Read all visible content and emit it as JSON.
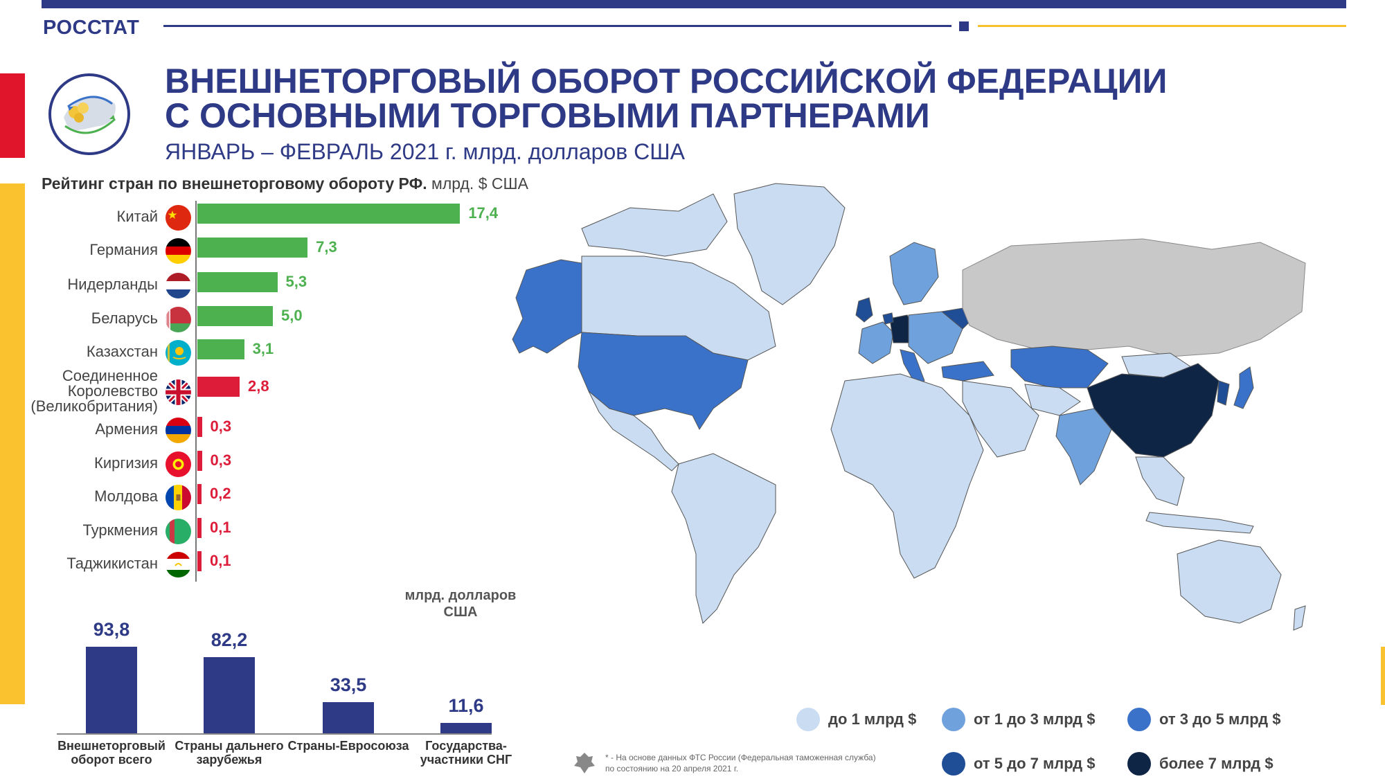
{
  "brand": "РОССТАТ",
  "title_line1": "ВНЕШНЕТОРГОВЫЙ ОБОРОТ РОССИЙСКОЙ ФЕДЕРАЦИИ",
  "title_line2": "С ОСНОВНЫМИ ТОРГОВЫМИ ПАРТНЕРАМИ",
  "subtitle": "ЯНВАРЬ – ФЕВРАЛЬ 2021 г. млрд. долларов США",
  "colors": {
    "navy": "#2e3a86",
    "green": "#4db14f",
    "red": "#dc1c38",
    "accent_red": "#e0142b",
    "accent_yellow": "#f9c22e",
    "map_grey": "#c8c8c8"
  },
  "chart_data": [
    {
      "type": "bar",
      "orientation": "horizontal",
      "title": "Рейтинг стран по внешнеторговому обороту РФ.",
      "unit": "млрд. $ США",
      "categories": [
        "Китай",
        "Германия",
        "Нидерланды",
        "Беларусь",
        "Казахстан",
        "Соединенное Королевство (Великобритания)",
        "Армения",
        "Киргизия",
        "Молдова",
        "Туркмения",
        "Таджикистан"
      ],
      "values": [
        17.4,
        7.3,
        5.3,
        5.0,
        3.1,
        2.8,
        0.3,
        0.3,
        0.2,
        0.1,
        0.1
      ],
      "value_labels": [
        "17,4",
        "7,3",
        "5,3",
        "5,0",
        "3,1",
        "2,8",
        "0,3",
        "0,3",
        "0,2",
        "0,1",
        "0,1"
      ],
      "bar_colors": [
        "#4db14f",
        "#4db14f",
        "#4db14f",
        "#4db14f",
        "#4db14f",
        "#dc1c38",
        "#dc1c38",
        "#dc1c38",
        "#dc1c38",
        "#dc1c38",
        "#dc1c38"
      ],
      "flags": [
        "china-flag-icon",
        "germany-flag-icon",
        "netherlands-flag-icon",
        "belarus-flag-icon",
        "kazakhstan-flag-icon",
        "uk-flag-icon",
        "armenia-flag-icon",
        "kyrgyzstan-flag-icon",
        "moldova-flag-icon",
        "turkmenistan-flag-icon",
        "tajikistan-flag-icon"
      ]
    },
    {
      "type": "bar",
      "orientation": "vertical",
      "unit_label": "млрд. долларов США",
      "categories": [
        "Внешнеторговый оборот всего",
        "Страны дальнего зарубежья",
        "Страны-Евросоюза",
        "Государства-участники СНГ"
      ],
      "values": [
        93.8,
        82.2,
        33.5,
        11.6
      ],
      "value_labels": [
        "93,8",
        "82,2",
        "33,5",
        "11,6"
      ]
    }
  ],
  "map": {
    "type": "choropleth world map",
    "legend": [
      {
        "label": "до 1 млрд $",
        "color": "#c9dcf1"
      },
      {
        "label": "от 1 до 3 млрд $",
        "color": "#6fa1dd"
      },
      {
        "label": "от 3 до 5 млрд $",
        "color": "#3b72c9"
      },
      {
        "label": "от 5 до 7 млрд $",
        "color": "#1f4d96"
      },
      {
        "label": "более 7 млрд $",
        "color": "#0f2546"
      }
    ]
  },
  "footnote_line1": "* - На основе данных ФТС России (Федеральная таможенная служба)",
  "footnote_line2": "по состоянию на 20 апреля 2021 г."
}
